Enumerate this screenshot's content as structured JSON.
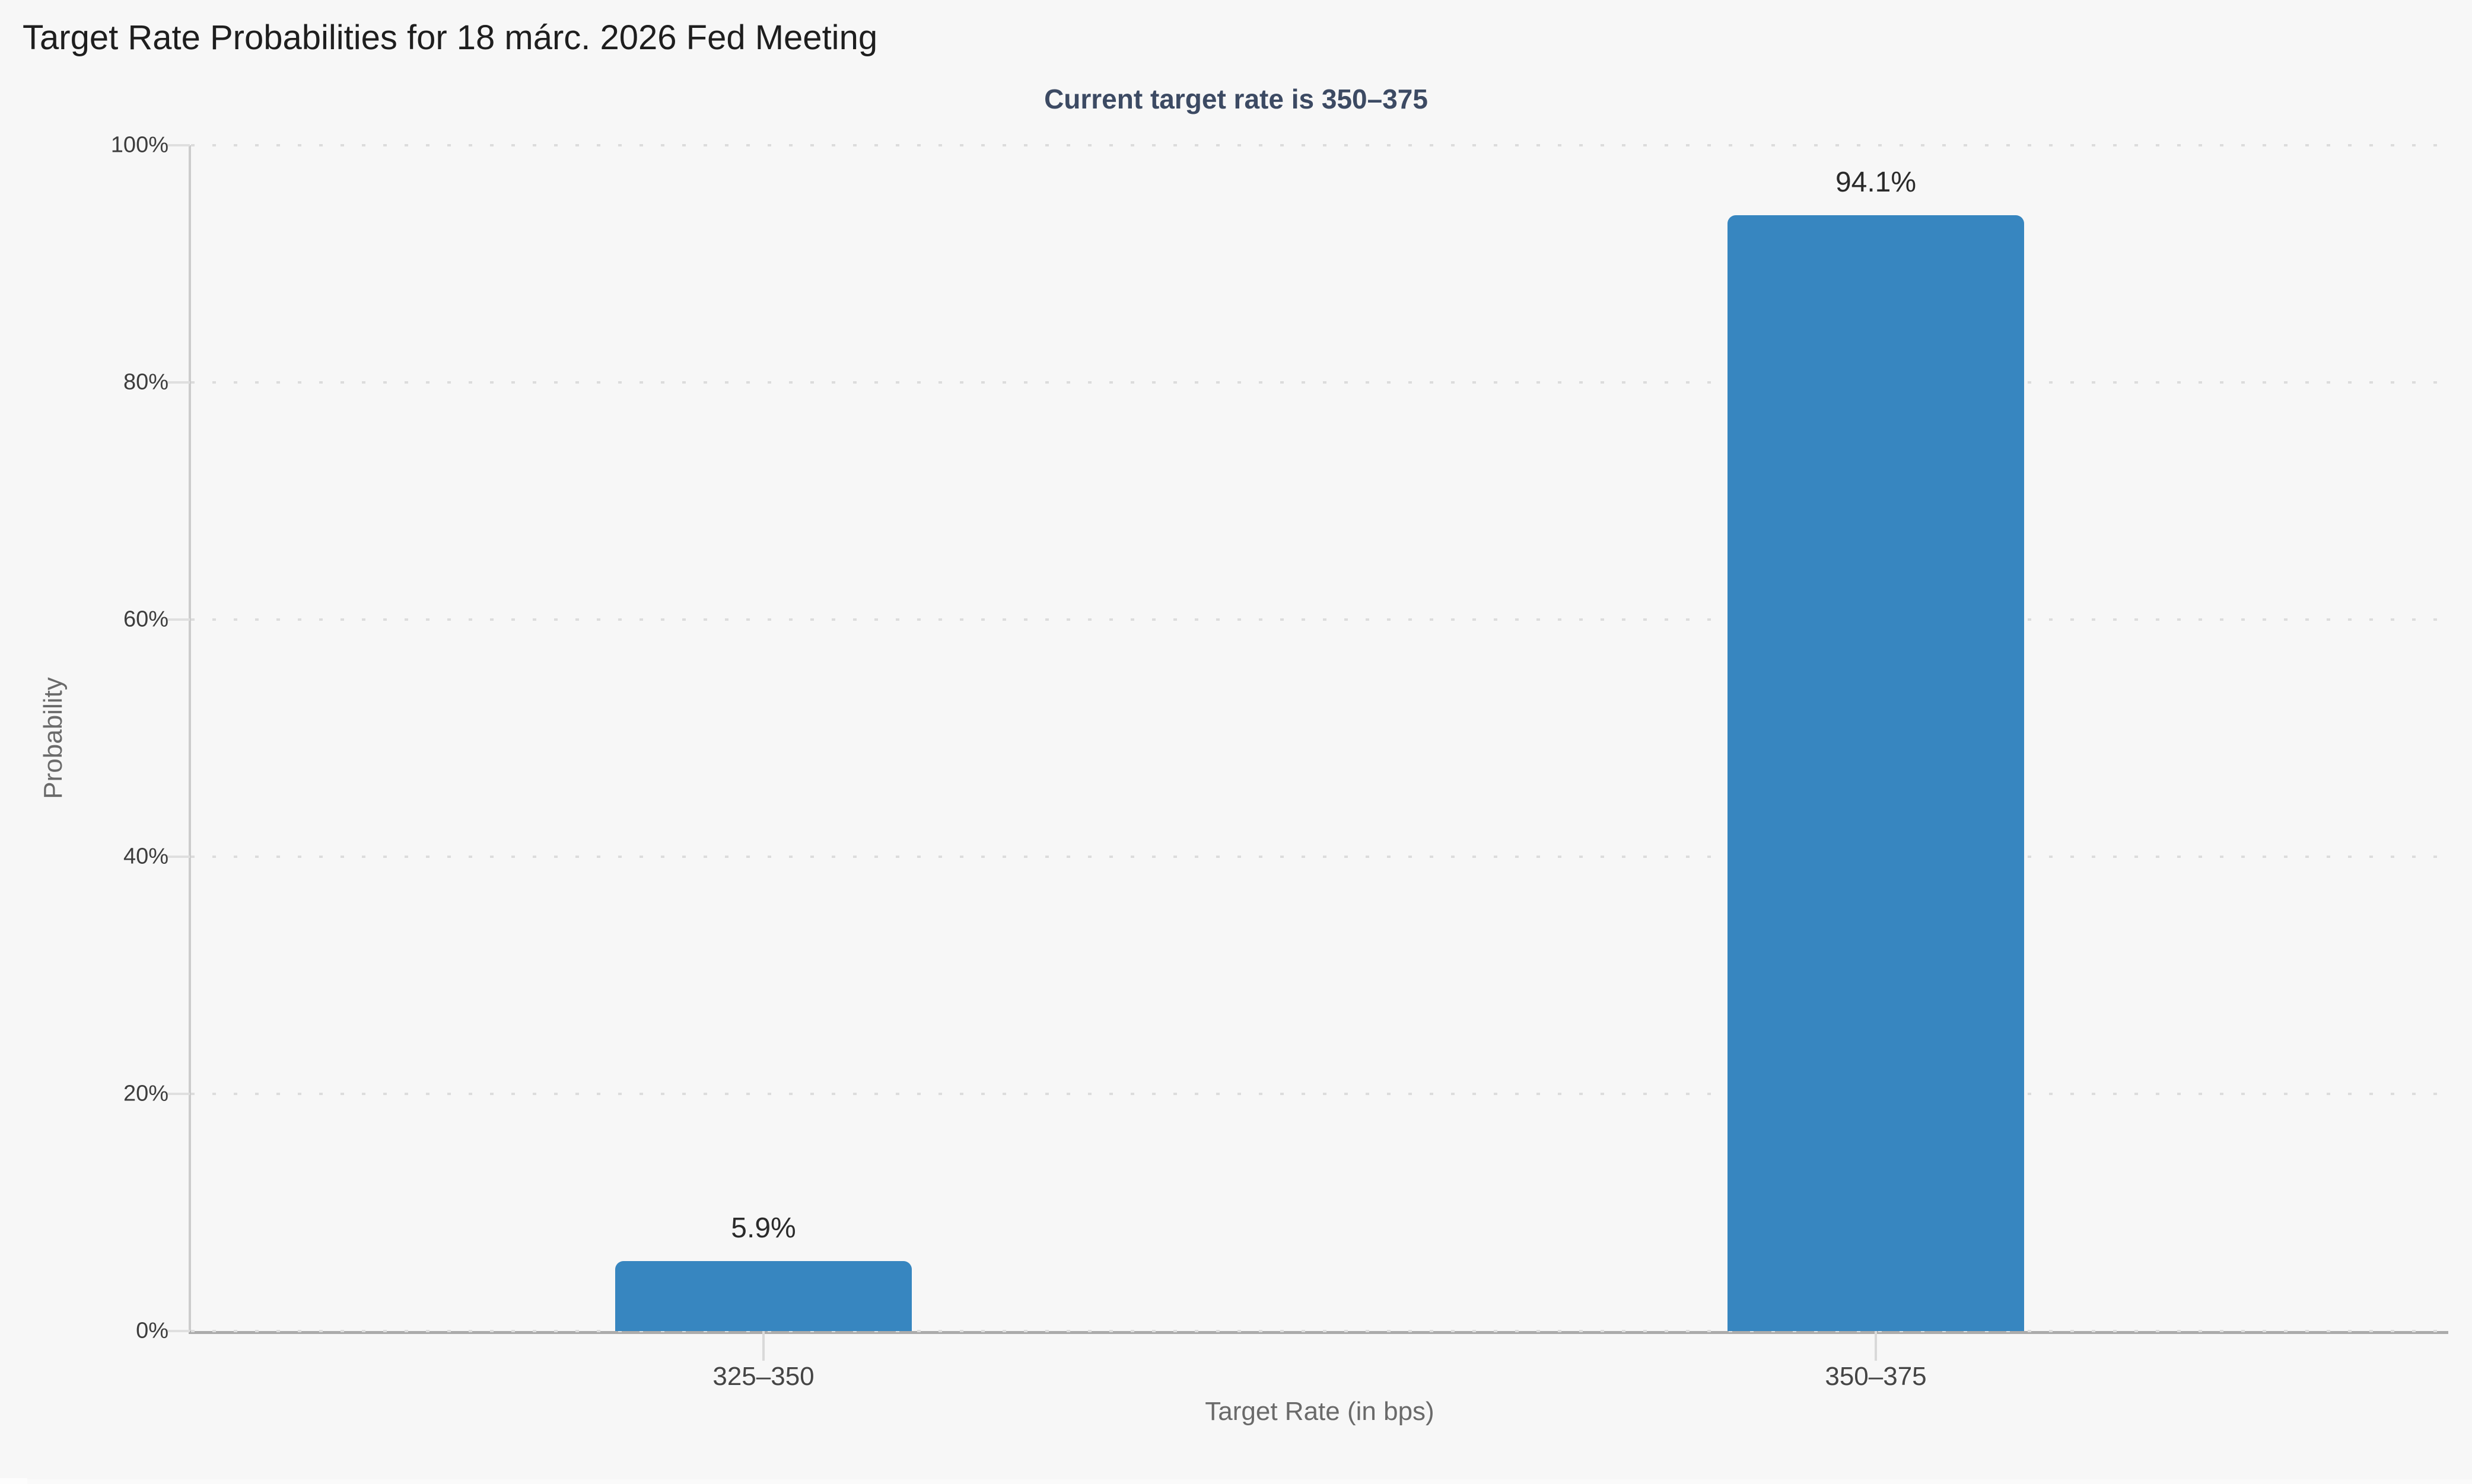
{
  "page": {
    "background_color": "#f7f7f7"
  },
  "chart_data": {
    "type": "bar",
    "title": "Target Rate Probabilities for 18 márc. 2026 Fed Meeting",
    "subtitle": "Current target rate is 350–375",
    "categories": [
      "325–350",
      "350–375"
    ],
    "values": [
      5.9,
      94.1
    ],
    "value_labels": [
      "5.9%",
      "94.1%"
    ],
    "xlabel": "Target Rate (in bps)",
    "ylabel": "Probability",
    "ylim": [
      0,
      100
    ],
    "ytick_step": 20,
    "ytick_labels_top_to_bottom": [
      "100%",
      "80%",
      "60%",
      "40%",
      "20%",
      "0%"
    ],
    "grid": "horizontal-dotted",
    "legend": "none",
    "colors": {
      "bar": "#3786c0",
      "background": "#f7f7f7",
      "title_text": "#1e1e1e",
      "subtitle_text": "#3c4a63",
      "value_label_text": "#2a2a2a",
      "ytick_label_text": "#3d3d3d",
      "category_label_text": "#454545",
      "axis_title_text": "#6a6a6a",
      "gridline": "#dcdcdc",
      "y_axis_line": "#cccccc",
      "x_axis_line": "#ababab"
    }
  }
}
